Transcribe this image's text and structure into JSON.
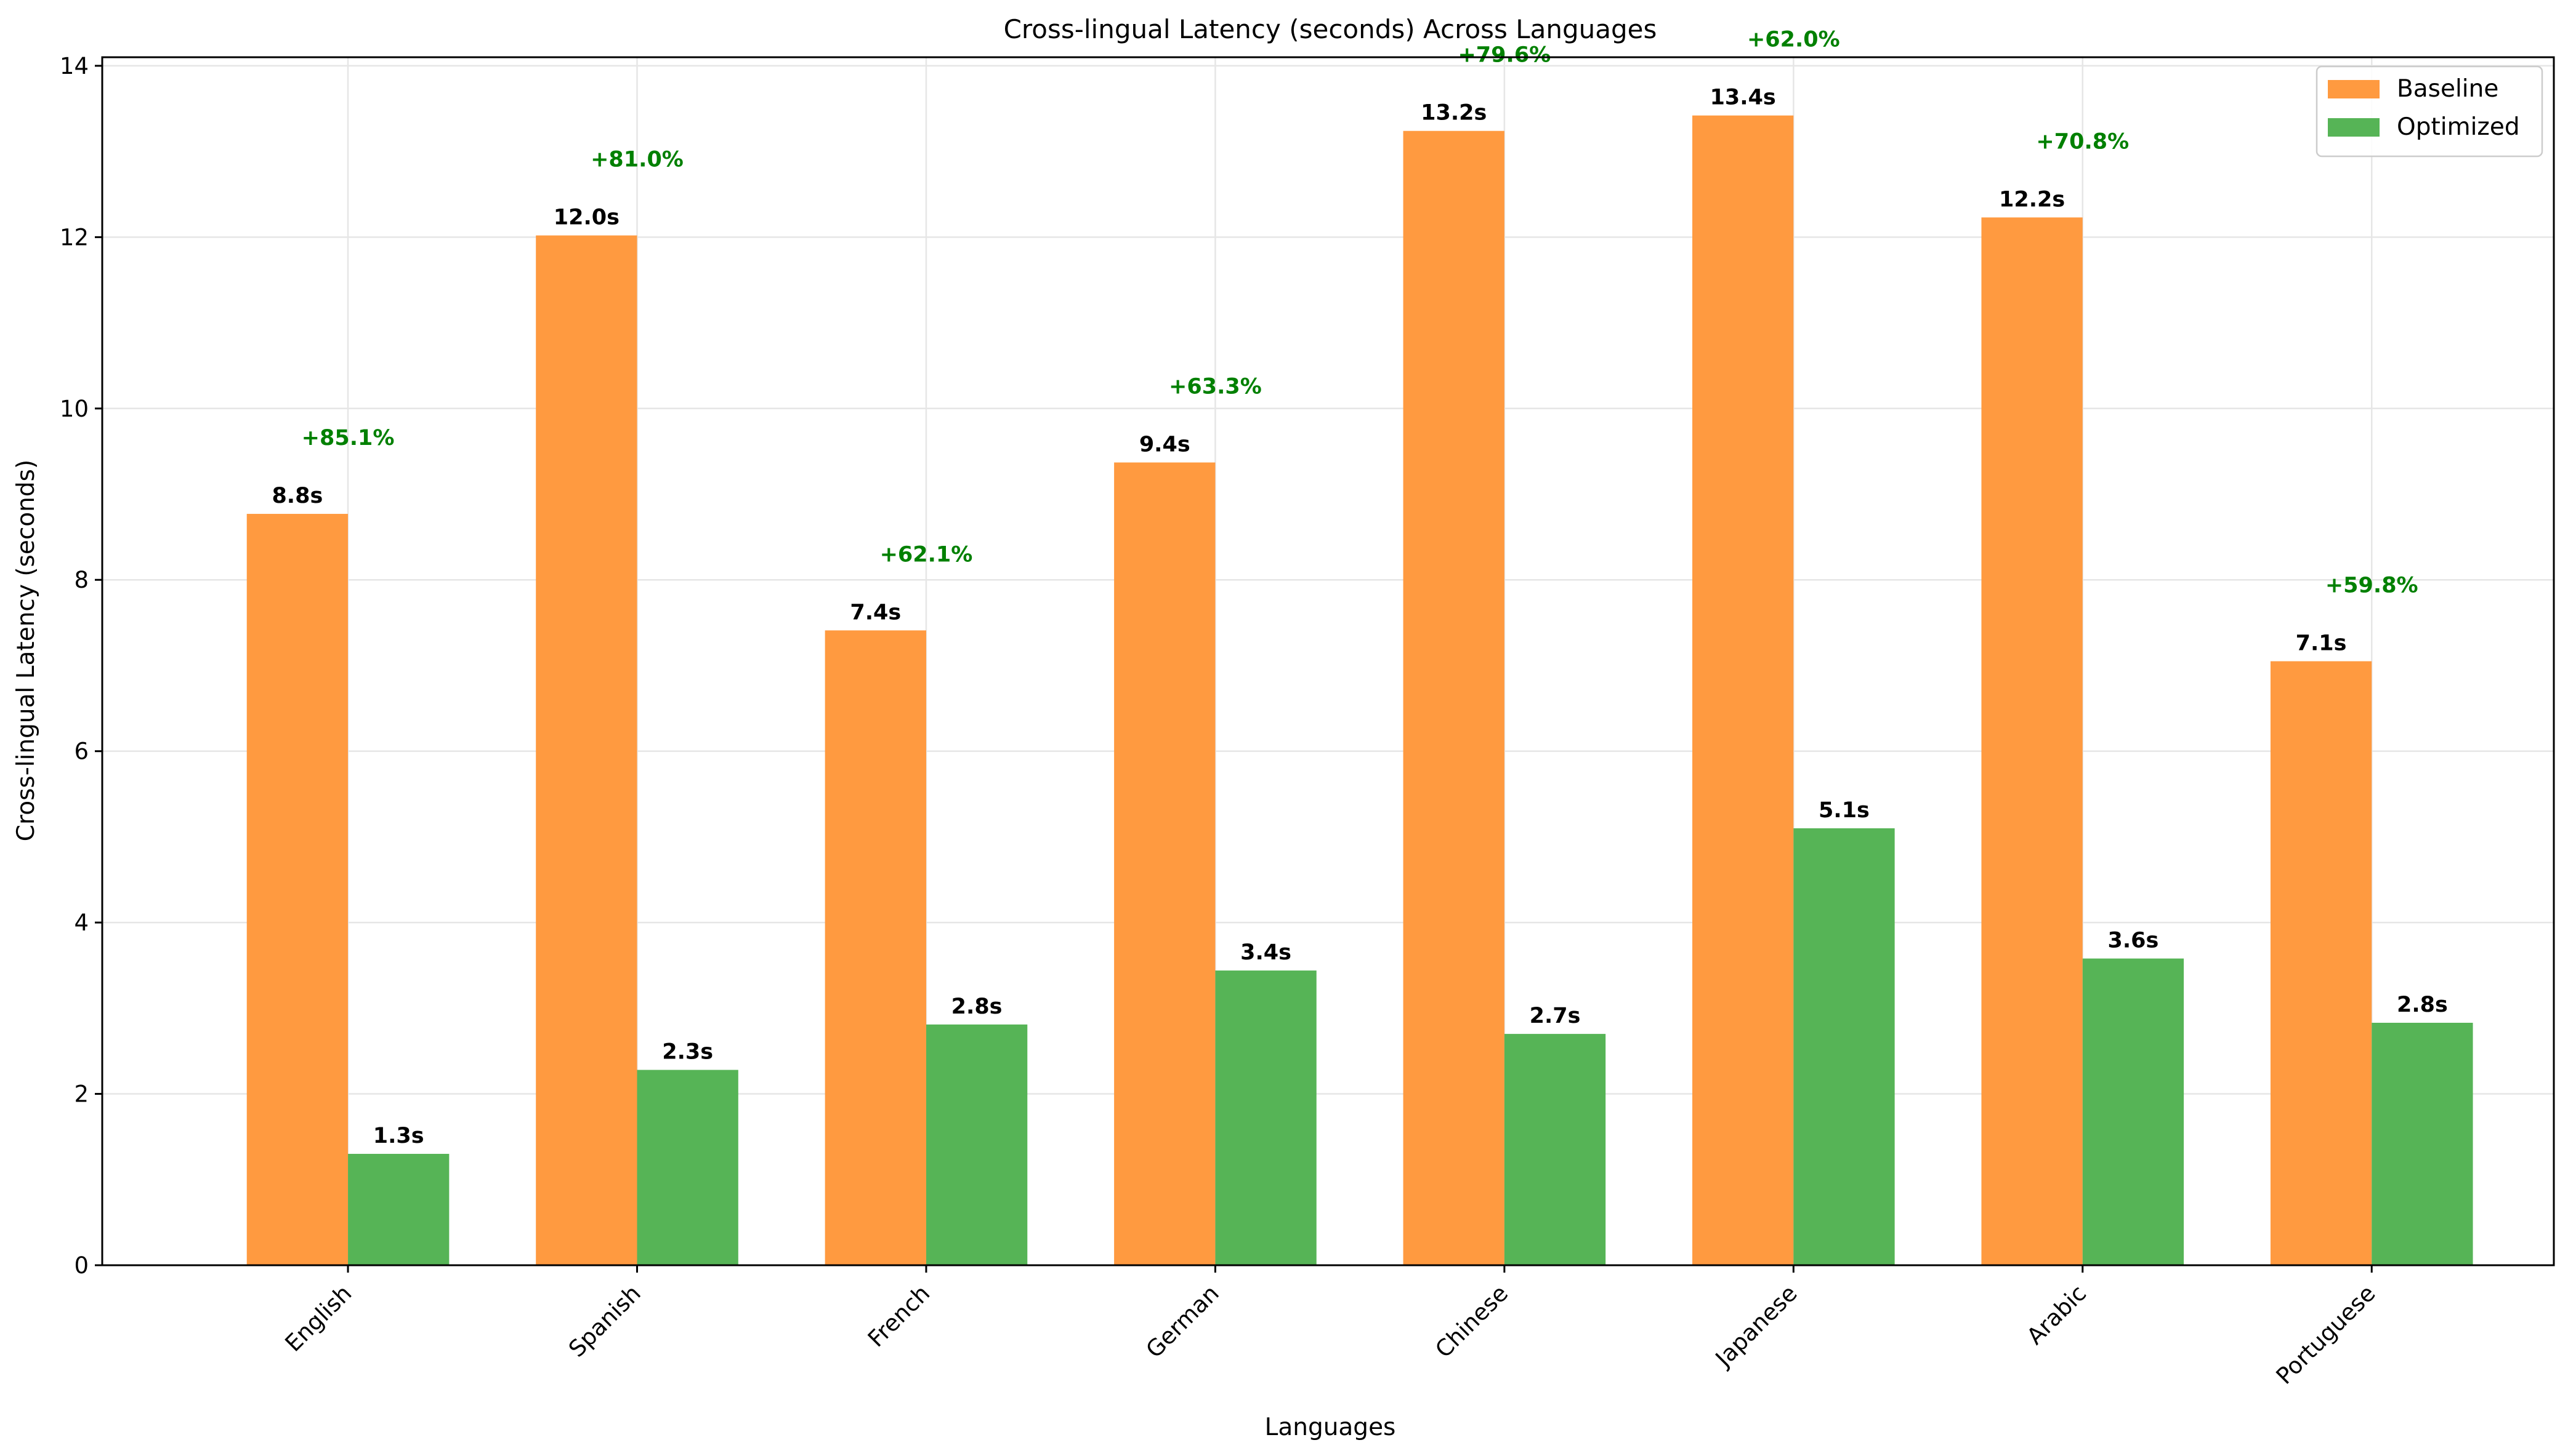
{
  "chart_data": {
    "type": "bar",
    "title": "Cross-lingual Latency (seconds) Across Languages",
    "xlabel": "Languages",
    "ylabel": "Cross-lingual Latency (seconds)",
    "ylim": [
      0,
      14.1
    ],
    "yticks": [
      0,
      2,
      4,
      6,
      8,
      10,
      12,
      14
    ],
    "grid": true,
    "legend_position": "top-right",
    "categories": [
      "English",
      "Spanish",
      "French",
      "German",
      "Chinese",
      "Japanese",
      "Arabic",
      "Portuguese"
    ],
    "series": [
      {
        "name": "Baseline",
        "color": "#ff9a40",
        "values": [
          8.77,
          12.02,
          7.41,
          9.37,
          13.24,
          13.42,
          12.23,
          7.05
        ],
        "labels": [
          "8.8s",
          "12.0s",
          "7.4s",
          "9.4s",
          "13.2s",
          "13.4s",
          "12.2s",
          "7.1s"
        ]
      },
      {
        "name": "Optimized",
        "color": "#56b456",
        "values": [
          1.3,
          2.28,
          2.81,
          3.44,
          2.7,
          5.1,
          3.58,
          2.83
        ],
        "labels": [
          "1.3s",
          "2.3s",
          "2.8s",
          "3.4s",
          "2.7s",
          "5.1s",
          "3.6s",
          "2.8s"
        ]
      }
    ],
    "improvement_labels": [
      "+85.1%",
      "+81.0%",
      "+62.1%",
      "+63.3%",
      "+79.6%",
      "+62.0%",
      "+70.8%",
      "+59.8%"
    ],
    "improvement_color": "#008000"
  }
}
